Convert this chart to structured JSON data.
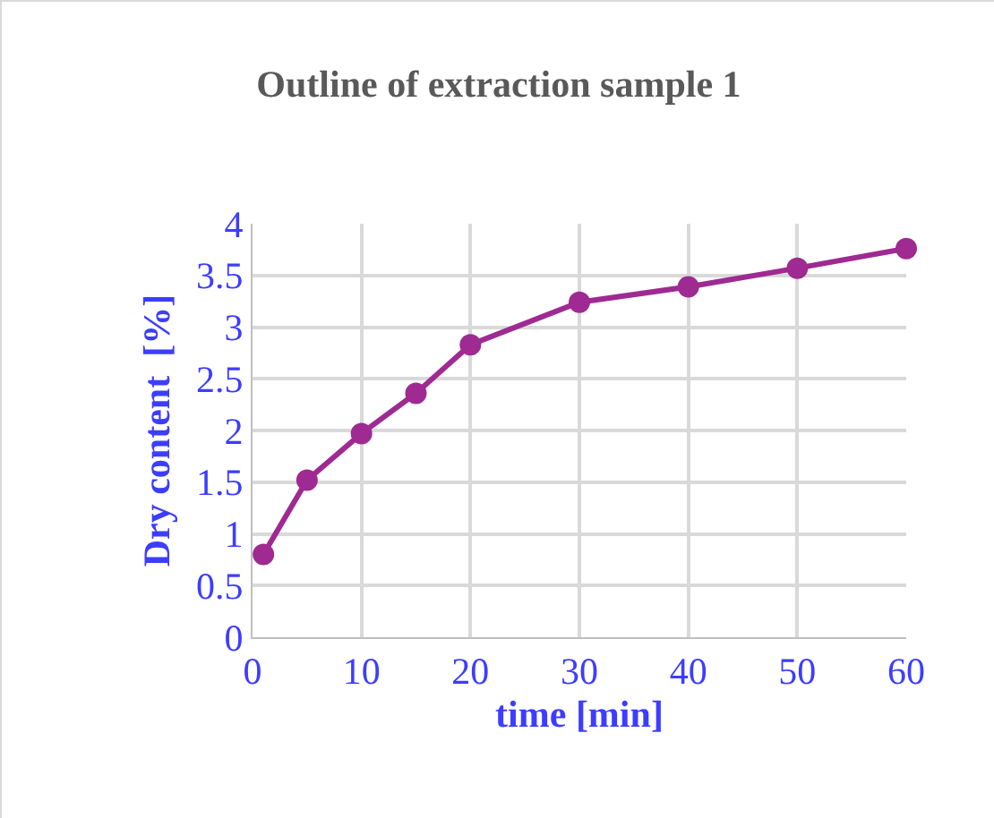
{
  "chart_data": {
    "type": "line",
    "title": "Outline of extraction sample 1",
    "xlabel": "time [min]",
    "ylabel": "Dry content  [%]",
    "x": [
      1,
      5,
      10,
      15,
      20,
      30,
      40,
      50,
      60
    ],
    "series": [
      {
        "color": "#9e2a92",
        "values": [
          0.8,
          1.52,
          1.97,
          2.36,
          2.83,
          3.24,
          3.39,
          3.57,
          3.76
        ]
      }
    ],
    "xlim": [
      0,
      60
    ],
    "xticks": [
      0,
      10,
      20,
      30,
      40,
      50,
      60
    ],
    "ylim": [
      0,
      4
    ],
    "yticks": [
      0,
      0.5,
      1,
      1.5,
      2,
      2.5,
      3,
      3.5,
      4
    ],
    "grid": true,
    "marker": "circle",
    "line_style": "solid"
  }
}
